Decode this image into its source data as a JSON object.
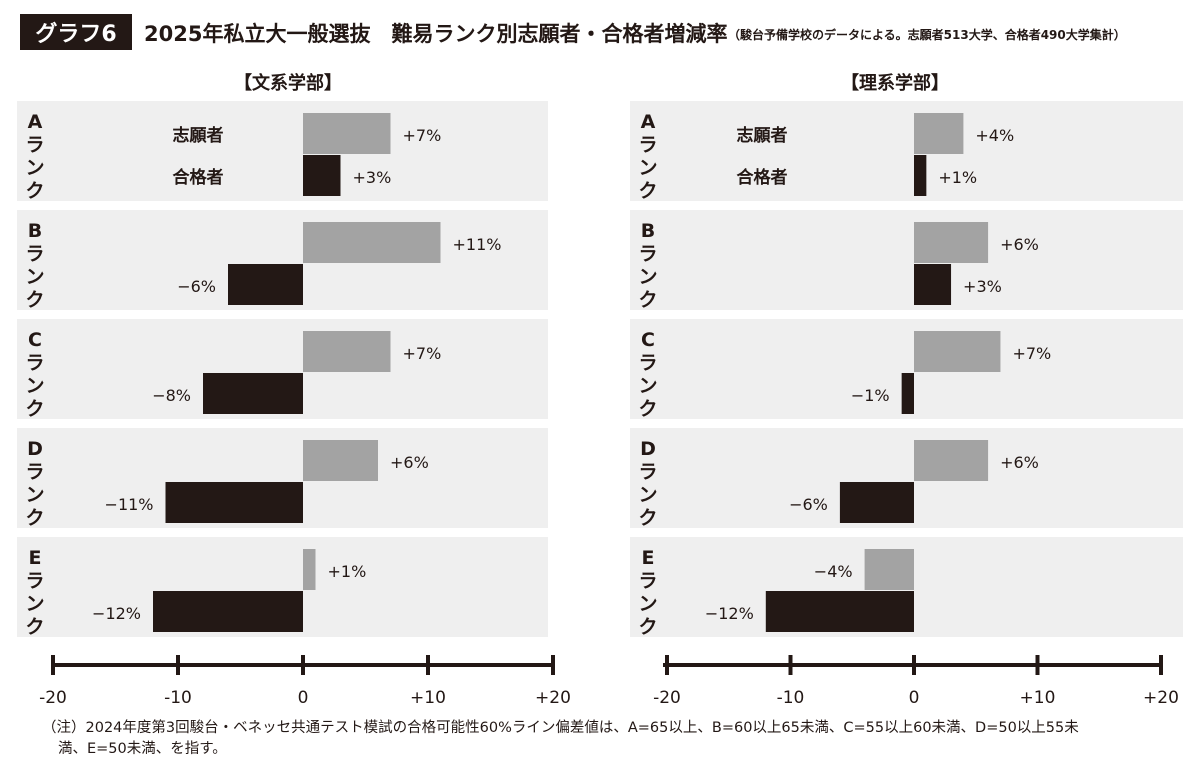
{
  "header": {
    "tag": "グラフ6",
    "title": "2025年私立大一般選抜　難易ランク別志願者・合格者増減率",
    "note": "（駿台予備学校のデータによる。志願者513大学、合格者490大学集計）"
  },
  "footnote": {
    "line1": "（注）2024年度第3回駿台・ベネッセ共通テスト模試の合格可能性60%ライン偏差値は、A=65以上、B=60以上65未満、C=55以上60未満、D=50以上55未",
    "line2": "満、E=50未満、を指す。"
  },
  "colors": {
    "applicants": "#a3a3a3",
    "passers": "#231815",
    "band": "#efefef"
  },
  "chart_data": [
    {
      "type": "bar",
      "orientation": "horizontal",
      "title": "【文系学部】",
      "categories": [
        "Aランク",
        "Bランク",
        "Cランク",
        "Dランク",
        "Eランク"
      ],
      "series": [
        {
          "name": "志願者",
          "values": [
            7,
            11,
            7,
            6,
            1
          ],
          "labels": [
            "+7%",
            "+11%",
            "+7%",
            "+6%",
            "+1%"
          ]
        },
        {
          "name": "合格者",
          "values": [
            3,
            -6,
            -8,
            -11,
            -12
          ],
          "labels": [
            "+3%",
            "−6%",
            "−8%",
            "−11%",
            "−12%"
          ]
        }
      ],
      "xlim": [
        -20,
        20
      ],
      "xticks": [
        -20,
        -10,
        0,
        10,
        20
      ],
      "xtick_labels": [
        "-20",
        "-10",
        "0",
        "+10",
        "+20"
      ],
      "legend": "inline-in-A-row"
    },
    {
      "type": "bar",
      "orientation": "horizontal",
      "title": "【理系学部】",
      "categories": [
        "Aランク",
        "Bランク",
        "Cランク",
        "Dランク",
        "Eランク"
      ],
      "series": [
        {
          "name": "志願者",
          "values": [
            4,
            6,
            7,
            6,
            -4
          ],
          "labels": [
            "+4%",
            "+6%",
            "+7%",
            "+6%",
            "−4%"
          ]
        },
        {
          "name": "合格者",
          "values": [
            1,
            3,
            -1,
            -6,
            -12
          ],
          "labels": [
            "+1%",
            "+3%",
            "−1%",
            "−6%",
            "−12%"
          ]
        }
      ],
      "xlim": [
        -20,
        20
      ],
      "xticks": [
        -20,
        -10,
        0,
        10,
        20
      ],
      "xtick_labels": [
        "-20",
        "-10",
        "0",
        "+10",
        "+20"
      ],
      "legend": "inline-in-A-row"
    }
  ]
}
